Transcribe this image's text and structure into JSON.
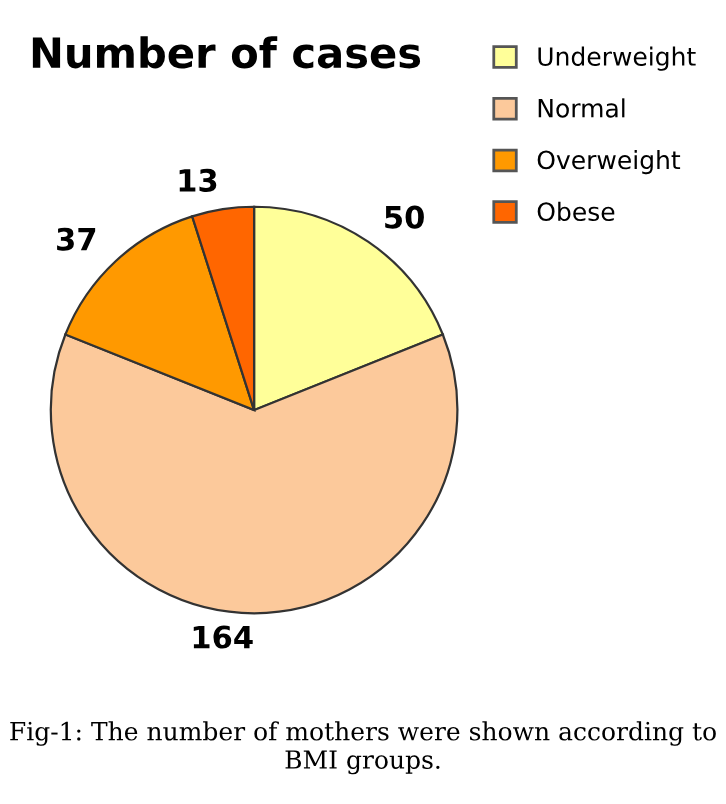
{
  "chart_data": {
    "type": "pie",
    "title": "Number of cases",
    "categories": [
      "Underweight",
      "Normal",
      "Overweight",
      "Obese"
    ],
    "values": [
      50,
      164,
      37,
      13
    ],
    "colors": [
      "#ffff99",
      "#fcc99b",
      "#ff9900",
      "#ff6600"
    ],
    "data_labels": true,
    "legend": "right",
    "annotations": [
      "Fig-1: The number of mothers were shown according to BMI groups."
    ]
  }
}
